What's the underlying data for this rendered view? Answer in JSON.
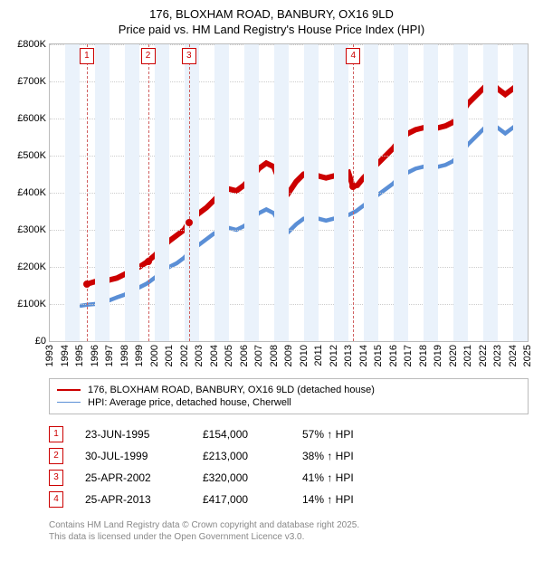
{
  "title": {
    "line1": "176, BLOXHAM ROAD, BANBURY, OX16 9LD",
    "line2": "Price paid vs. HM Land Registry's House Price Index (HPI)"
  },
  "chart": {
    "type": "line",
    "background_color": "#ffffff",
    "grid_color": "#cccccc",
    "border_color": "#bbbbbb",
    "shade_color": "#eaf2fb",
    "vline_color": "#d06060",
    "marker_border": "#cc0000",
    "y": {
      "min": 0,
      "max": 800000,
      "step": 100000,
      "labels": [
        "£0",
        "£100K",
        "£200K",
        "£300K",
        "£400K",
        "£500K",
        "£600K",
        "£700K",
        "£800K"
      ],
      "fontsize": 11
    },
    "x": {
      "min": 1993,
      "max": 2025,
      "labels": [
        "1993",
        "1994",
        "1995",
        "1996",
        "1997",
        "1998",
        "1999",
        "2000",
        "2001",
        "2002",
        "2003",
        "2004",
        "2005",
        "2006",
        "2007",
        "2008",
        "2009",
        "2010",
        "2011",
        "2012",
        "2013",
        "2014",
        "2015",
        "2016",
        "2017",
        "2018",
        "2019",
        "2020",
        "2021",
        "2022",
        "2023",
        "2024",
        "2025"
      ],
      "fontsize": 11
    },
    "series": [
      {
        "name": "176, BLOXHAM ROAD, BANBURY, OX16 9LD (detached house)",
        "color": "#cc0000",
        "stroke_width": 2,
        "data": [
          [
            1995.5,
            154
          ],
          [
            1996,
            160
          ],
          [
            1996.5,
            155
          ],
          [
            1997,
            165
          ],
          [
            1997.5,
            170
          ],
          [
            1998,
            180
          ],
          [
            1998.5,
            190
          ],
          [
            1999,
            200
          ],
          [
            1999.5,
            213
          ],
          [
            2000,
            230
          ],
          [
            2000.5,
            250
          ],
          [
            2001,
            270
          ],
          [
            2001.5,
            285
          ],
          [
            2002,
            300
          ],
          [
            2002.3,
            320
          ],
          [
            2003,
            345
          ],
          [
            2003.5,
            360
          ],
          [
            2004,
            380
          ],
          [
            2004.5,
            400
          ],
          [
            2005,
            410
          ],
          [
            2005.5,
            405
          ],
          [
            2006,
            420
          ],
          [
            2006.5,
            440
          ],
          [
            2007,
            465
          ],
          [
            2007.5,
            480
          ],
          [
            2008,
            470
          ],
          [
            2008.5,
            420
          ],
          [
            2009,
            400
          ],
          [
            2009.5,
            430
          ],
          [
            2010,
            450
          ],
          [
            2010.5,
            455
          ],
          [
            2011,
            445
          ],
          [
            2011.5,
            440
          ],
          [
            2012,
            445
          ],
          [
            2012.5,
            450
          ],
          [
            2013,
            455
          ],
          [
            2013.3,
            417
          ],
          [
            2013.6,
            420
          ],
          [
            2014,
            440
          ],
          [
            2014.5,
            460
          ],
          [
            2015,
            480
          ],
          [
            2015.5,
            500
          ],
          [
            2016,
            520
          ],
          [
            2016.5,
            545
          ],
          [
            2017,
            560
          ],
          [
            2017.5,
            570
          ],
          [
            2018,
            575
          ],
          [
            2018.5,
            580
          ],
          [
            2019,
            575
          ],
          [
            2019.5,
            580
          ],
          [
            2020,
            590
          ],
          [
            2020.5,
            610
          ],
          [
            2021,
            640
          ],
          [
            2021.5,
            660
          ],
          [
            2022,
            680
          ],
          [
            2022.5,
            700
          ],
          [
            2023,
            680
          ],
          [
            2023.5,
            665
          ],
          [
            2024,
            680
          ],
          [
            2024.5,
            695
          ],
          [
            2025,
            690
          ]
        ]
      },
      {
        "name": "HPI: Average price, detached house, Cherwell",
        "color": "#5b8fd6",
        "stroke_width": 1.5,
        "data": [
          [
            1995,
            95
          ],
          [
            1995.5,
            98
          ],
          [
            1996,
            100
          ],
          [
            1996.5,
            105
          ],
          [
            1997,
            110
          ],
          [
            1997.5,
            118
          ],
          [
            1998,
            125
          ],
          [
            1998.5,
            135
          ],
          [
            1999,
            145
          ],
          [
            1999.5,
            155
          ],
          [
            2000,
            170
          ],
          [
            2000.5,
            185
          ],
          [
            2001,
            200
          ],
          [
            2001.5,
            210
          ],
          [
            2002,
            225
          ],
          [
            2002.5,
            245
          ],
          [
            2003,
            260
          ],
          [
            2003.5,
            275
          ],
          [
            2004,
            290
          ],
          [
            2004.5,
            300
          ],
          [
            2005,
            305
          ],
          [
            2005.5,
            300
          ],
          [
            2006,
            310
          ],
          [
            2006.5,
            325
          ],
          [
            2007,
            345
          ],
          [
            2007.5,
            355
          ],
          [
            2008,
            345
          ],
          [
            2008.5,
            310
          ],
          [
            2009,
            295
          ],
          [
            2009.5,
            315
          ],
          [
            2010,
            330
          ],
          [
            2010.5,
            335
          ],
          [
            2011,
            330
          ],
          [
            2011.5,
            325
          ],
          [
            2012,
            330
          ],
          [
            2012.5,
            335
          ],
          [
            2013,
            340
          ],
          [
            2013.5,
            350
          ],
          [
            2014,
            365
          ],
          [
            2014.5,
            380
          ],
          [
            2015,
            395
          ],
          [
            2015.5,
            410
          ],
          [
            2016,
            425
          ],
          [
            2016.5,
            445
          ],
          [
            2017,
            455
          ],
          [
            2017.5,
            465
          ],
          [
            2018,
            470
          ],
          [
            2018.5,
            475
          ],
          [
            2019,
            470
          ],
          [
            2019.5,
            475
          ],
          [
            2020,
            485
          ],
          [
            2020.5,
            505
          ],
          [
            2021,
            530
          ],
          [
            2021.5,
            550
          ],
          [
            2022,
            570
          ],
          [
            2022.5,
            590
          ],
          [
            2023,
            575
          ],
          [
            2023.5,
            560
          ],
          [
            2024,
            575
          ],
          [
            2024.5,
            590
          ],
          [
            2025,
            600
          ]
        ]
      }
    ],
    "sale_markers": [
      {
        "n": "1",
        "year": 1995.48
      },
      {
        "n": "2",
        "year": 1999.58
      },
      {
        "n": "3",
        "year": 2002.32
      },
      {
        "n": "4",
        "year": 2013.32
      }
    ],
    "sale_points": [
      {
        "year": 1995.48,
        "value": 154
      },
      {
        "year": 1999.58,
        "value": 213
      },
      {
        "year": 2002.32,
        "value": 320
      },
      {
        "year": 2013.32,
        "value": 417
      }
    ]
  },
  "legend": {
    "items": [
      {
        "color": "#cc0000",
        "width": 2,
        "label": "176, BLOXHAM ROAD, BANBURY, OX16 9LD (detached house)"
      },
      {
        "color": "#5b8fd6",
        "width": 1.5,
        "label": "HPI: Average price, detached house, Cherwell"
      }
    ]
  },
  "sales_table": [
    {
      "n": "1",
      "date": "23-JUN-1995",
      "price": "£154,000",
      "pct": "57% ↑ HPI"
    },
    {
      "n": "2",
      "date": "30-JUL-1999",
      "price": "£213,000",
      "pct": "38% ↑ HPI"
    },
    {
      "n": "3",
      "date": "25-APR-2002",
      "price": "£320,000",
      "pct": "41% ↑ HPI"
    },
    {
      "n": "4",
      "date": "25-APR-2013",
      "price": "£417,000",
      "pct": "14% ↑ HPI"
    }
  ],
  "footer": {
    "line1": "Contains HM Land Registry data © Crown copyright and database right 2025.",
    "line2": "This data is licensed under the Open Government Licence v3.0."
  }
}
